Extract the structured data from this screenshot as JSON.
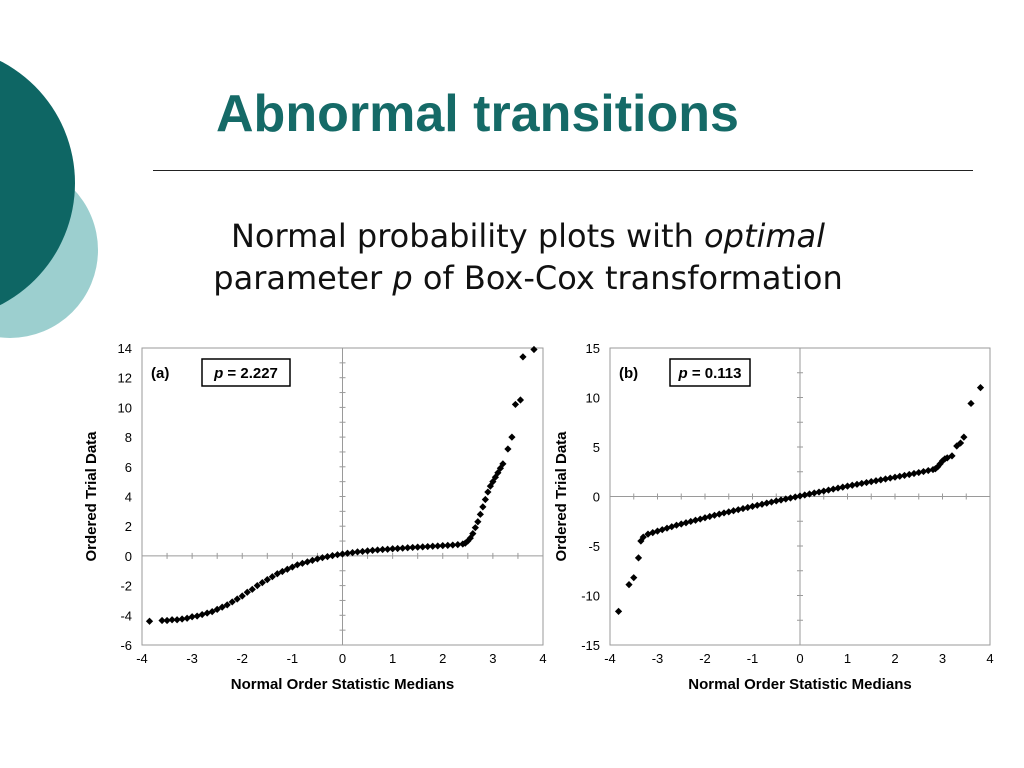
{
  "slide": {
    "title": "Abnormal transitions",
    "subtitle": {
      "line1_prefix": "Normal probability plots with ",
      "line1_italic": "optimal",
      "line2_prefix": "parameter ",
      "line2_italic": "p",
      "line2_suffix": " of Box-Cox transformation"
    },
    "colors": {
      "title": "#156a67",
      "dark_circle": "#0e6664",
      "light_circle": "#9ccfcf",
      "marker": "#000000"
    }
  },
  "chart_data": [
    {
      "type": "scatter",
      "panel_label": "(a)",
      "p_label": "p",
      "p_value": "= 2.227",
      "xlabel": "Normal Order Statistic Medians",
      "ylabel": "Ordered Trial Data",
      "xlim": [
        -4,
        4
      ],
      "ylim": [
        -6,
        14
      ],
      "xticks": [
        -4,
        -3,
        -2,
        -1,
        0,
        1,
        2,
        3,
        4
      ],
      "yticks": [
        -6,
        -4,
        -2,
        0,
        2,
        4,
        6,
        8,
        10,
        12,
        14
      ],
      "marker": "diamond",
      "points": [
        [
          -3.85,
          -4.4
        ],
        [
          -3.6,
          -4.35
        ],
        [
          -3.5,
          -4.35
        ],
        [
          -3.4,
          -4.3
        ],
        [
          -3.3,
          -4.3
        ],
        [
          -3.2,
          -4.25
        ],
        [
          -3.1,
          -4.2
        ],
        [
          -3.0,
          -4.1
        ],
        [
          -2.9,
          -4.05
        ],
        [
          -2.8,
          -3.95
        ],
        [
          -2.7,
          -3.85
        ],
        [
          -2.6,
          -3.75
        ],
        [
          -2.5,
          -3.6
        ],
        [
          -2.4,
          -3.45
        ],
        [
          -2.3,
          -3.3
        ],
        [
          -2.2,
          -3.1
        ],
        [
          -2.1,
          -2.9
        ],
        [
          -2.0,
          -2.7
        ],
        [
          -1.9,
          -2.45
        ],
        [
          -1.8,
          -2.25
        ],
        [
          -1.7,
          -2.0
        ],
        [
          -1.6,
          -1.8
        ],
        [
          -1.5,
          -1.6
        ],
        [
          -1.4,
          -1.4
        ],
        [
          -1.3,
          -1.2
        ],
        [
          -1.2,
          -1.05
        ],
        [
          -1.1,
          -0.9
        ],
        [
          -1.0,
          -0.75
        ],
        [
          -0.9,
          -0.6
        ],
        [
          -0.8,
          -0.5
        ],
        [
          -0.7,
          -0.4
        ],
        [
          -0.6,
          -0.3
        ],
        [
          -0.5,
          -0.2
        ],
        [
          -0.4,
          -0.12
        ],
        [
          -0.3,
          -0.05
        ],
        [
          -0.2,
          0.02
        ],
        [
          -0.1,
          0.08
        ],
        [
          0.0,
          0.13
        ],
        [
          0.1,
          0.18
        ],
        [
          0.2,
          0.22
        ],
        [
          0.3,
          0.27
        ],
        [
          0.4,
          0.3
        ],
        [
          0.5,
          0.34
        ],
        [
          0.6,
          0.37
        ],
        [
          0.7,
          0.4
        ],
        [
          0.8,
          0.43
        ],
        [
          0.9,
          0.45
        ],
        [
          1.0,
          0.48
        ],
        [
          1.1,
          0.5
        ],
        [
          1.2,
          0.52
        ],
        [
          1.3,
          0.55
        ],
        [
          1.4,
          0.57
        ],
        [
          1.5,
          0.59
        ],
        [
          1.6,
          0.61
        ],
        [
          1.7,
          0.63
        ],
        [
          1.8,
          0.65
        ],
        [
          1.9,
          0.67
        ],
        [
          2.0,
          0.69
        ],
        [
          2.1,
          0.71
        ],
        [
          2.2,
          0.73
        ],
        [
          2.3,
          0.76
        ],
        [
          2.4,
          0.8
        ],
        [
          2.45,
          0.86
        ],
        [
          2.5,
          1.0
        ],
        [
          2.55,
          1.2
        ],
        [
          2.6,
          1.5
        ],
        [
          2.65,
          1.9
        ],
        [
          2.7,
          2.3
        ],
        [
          2.75,
          2.8
        ],
        [
          2.8,
          3.3
        ],
        [
          2.85,
          3.8
        ],
        [
          2.9,
          4.3
        ],
        [
          2.95,
          4.7
        ],
        [
          3.0,
          5.0
        ],
        [
          3.05,
          5.3
        ],
        [
          3.1,
          5.6
        ],
        [
          3.15,
          5.9
        ],
        [
          3.2,
          6.2
        ],
        [
          3.3,
          7.2
        ],
        [
          3.38,
          8.0
        ],
        [
          3.45,
          10.2
        ],
        [
          3.55,
          10.5
        ],
        [
          3.6,
          13.4
        ],
        [
          3.82,
          13.9
        ]
      ]
    },
    {
      "type": "scatter",
      "panel_label": "(b)",
      "p_label": "p",
      "p_value": "= 0.113",
      "xlabel": "Normal Order Statistic Medians",
      "ylabel": "Ordered Trial Data",
      "xlim": [
        -4,
        4
      ],
      "ylim": [
        -15,
        15
      ],
      "xticks": [
        -4,
        -3,
        -2,
        -1,
        0,
        1,
        2,
        3,
        4
      ],
      "yticks": [
        -15,
        -10,
        -5,
        0,
        5,
        10,
        15
      ],
      "marker": "diamond",
      "points": [
        [
          -3.82,
          -11.6
        ],
        [
          -3.6,
          -8.9
        ],
        [
          -3.5,
          -8.2
        ],
        [
          -3.4,
          -6.2
        ],
        [
          -3.35,
          -4.5
        ],
        [
          -3.3,
          -4.1
        ],
        [
          -3.2,
          -3.8
        ],
        [
          -3.1,
          -3.65
        ],
        [
          -3.0,
          -3.5
        ],
        [
          -2.9,
          -3.35
        ],
        [
          -2.8,
          -3.2
        ],
        [
          -2.7,
          -3.05
        ],
        [
          -2.6,
          -2.9
        ],
        [
          -2.5,
          -2.78
        ],
        [
          -2.4,
          -2.65
        ],
        [
          -2.3,
          -2.52
        ],
        [
          -2.2,
          -2.4
        ],
        [
          -2.1,
          -2.28
        ],
        [
          -2.0,
          -2.15
        ],
        [
          -1.9,
          -2.02
        ],
        [
          -1.8,
          -1.9
        ],
        [
          -1.7,
          -1.78
        ],
        [
          -1.6,
          -1.66
        ],
        [
          -1.5,
          -1.55
        ],
        [
          -1.4,
          -1.44
        ],
        [
          -1.3,
          -1.33
        ],
        [
          -1.2,
          -1.22
        ],
        [
          -1.1,
          -1.11
        ],
        [
          -1.0,
          -1.0
        ],
        [
          -0.9,
          -0.89
        ],
        [
          -0.8,
          -0.78
        ],
        [
          -0.7,
          -0.67
        ],
        [
          -0.6,
          -0.56
        ],
        [
          -0.5,
          -0.45
        ],
        [
          -0.4,
          -0.35
        ],
        [
          -0.3,
          -0.25
        ],
        [
          -0.2,
          -0.15
        ],
        [
          -0.1,
          -0.05
        ],
        [
          0.0,
          0.05
        ],
        [
          0.1,
          0.15
        ],
        [
          0.2,
          0.25
        ],
        [
          0.3,
          0.35
        ],
        [
          0.4,
          0.45
        ],
        [
          0.5,
          0.55
        ],
        [
          0.6,
          0.65
        ],
        [
          0.7,
          0.75
        ],
        [
          0.8,
          0.85
        ],
        [
          0.9,
          0.95
        ],
        [
          1.0,
          1.05
        ],
        [
          1.1,
          1.14
        ],
        [
          1.2,
          1.23
        ],
        [
          1.3,
          1.32
        ],
        [
          1.4,
          1.41
        ],
        [
          1.5,
          1.5
        ],
        [
          1.6,
          1.59
        ],
        [
          1.7,
          1.68
        ],
        [
          1.8,
          1.77
        ],
        [
          1.9,
          1.86
        ],
        [
          2.0,
          1.95
        ],
        [
          2.1,
          2.04
        ],
        [
          2.2,
          2.13
        ],
        [
          2.3,
          2.22
        ],
        [
          2.4,
          2.32
        ],
        [
          2.5,
          2.42
        ],
        [
          2.6,
          2.52
        ],
        [
          2.7,
          2.62
        ],
        [
          2.8,
          2.72
        ],
        [
          2.85,
          2.8
        ],
        [
          2.9,
          3.0
        ],
        [
          2.95,
          3.3
        ],
        [
          3.0,
          3.6
        ],
        [
          3.05,
          3.8
        ],
        [
          3.1,
          3.9
        ],
        [
          3.2,
          4.1
        ],
        [
          3.3,
          5.1
        ],
        [
          3.38,
          5.4
        ],
        [
          3.45,
          6.0
        ],
        [
          3.6,
          9.4
        ],
        [
          3.8,
          11.0
        ]
      ]
    }
  ]
}
